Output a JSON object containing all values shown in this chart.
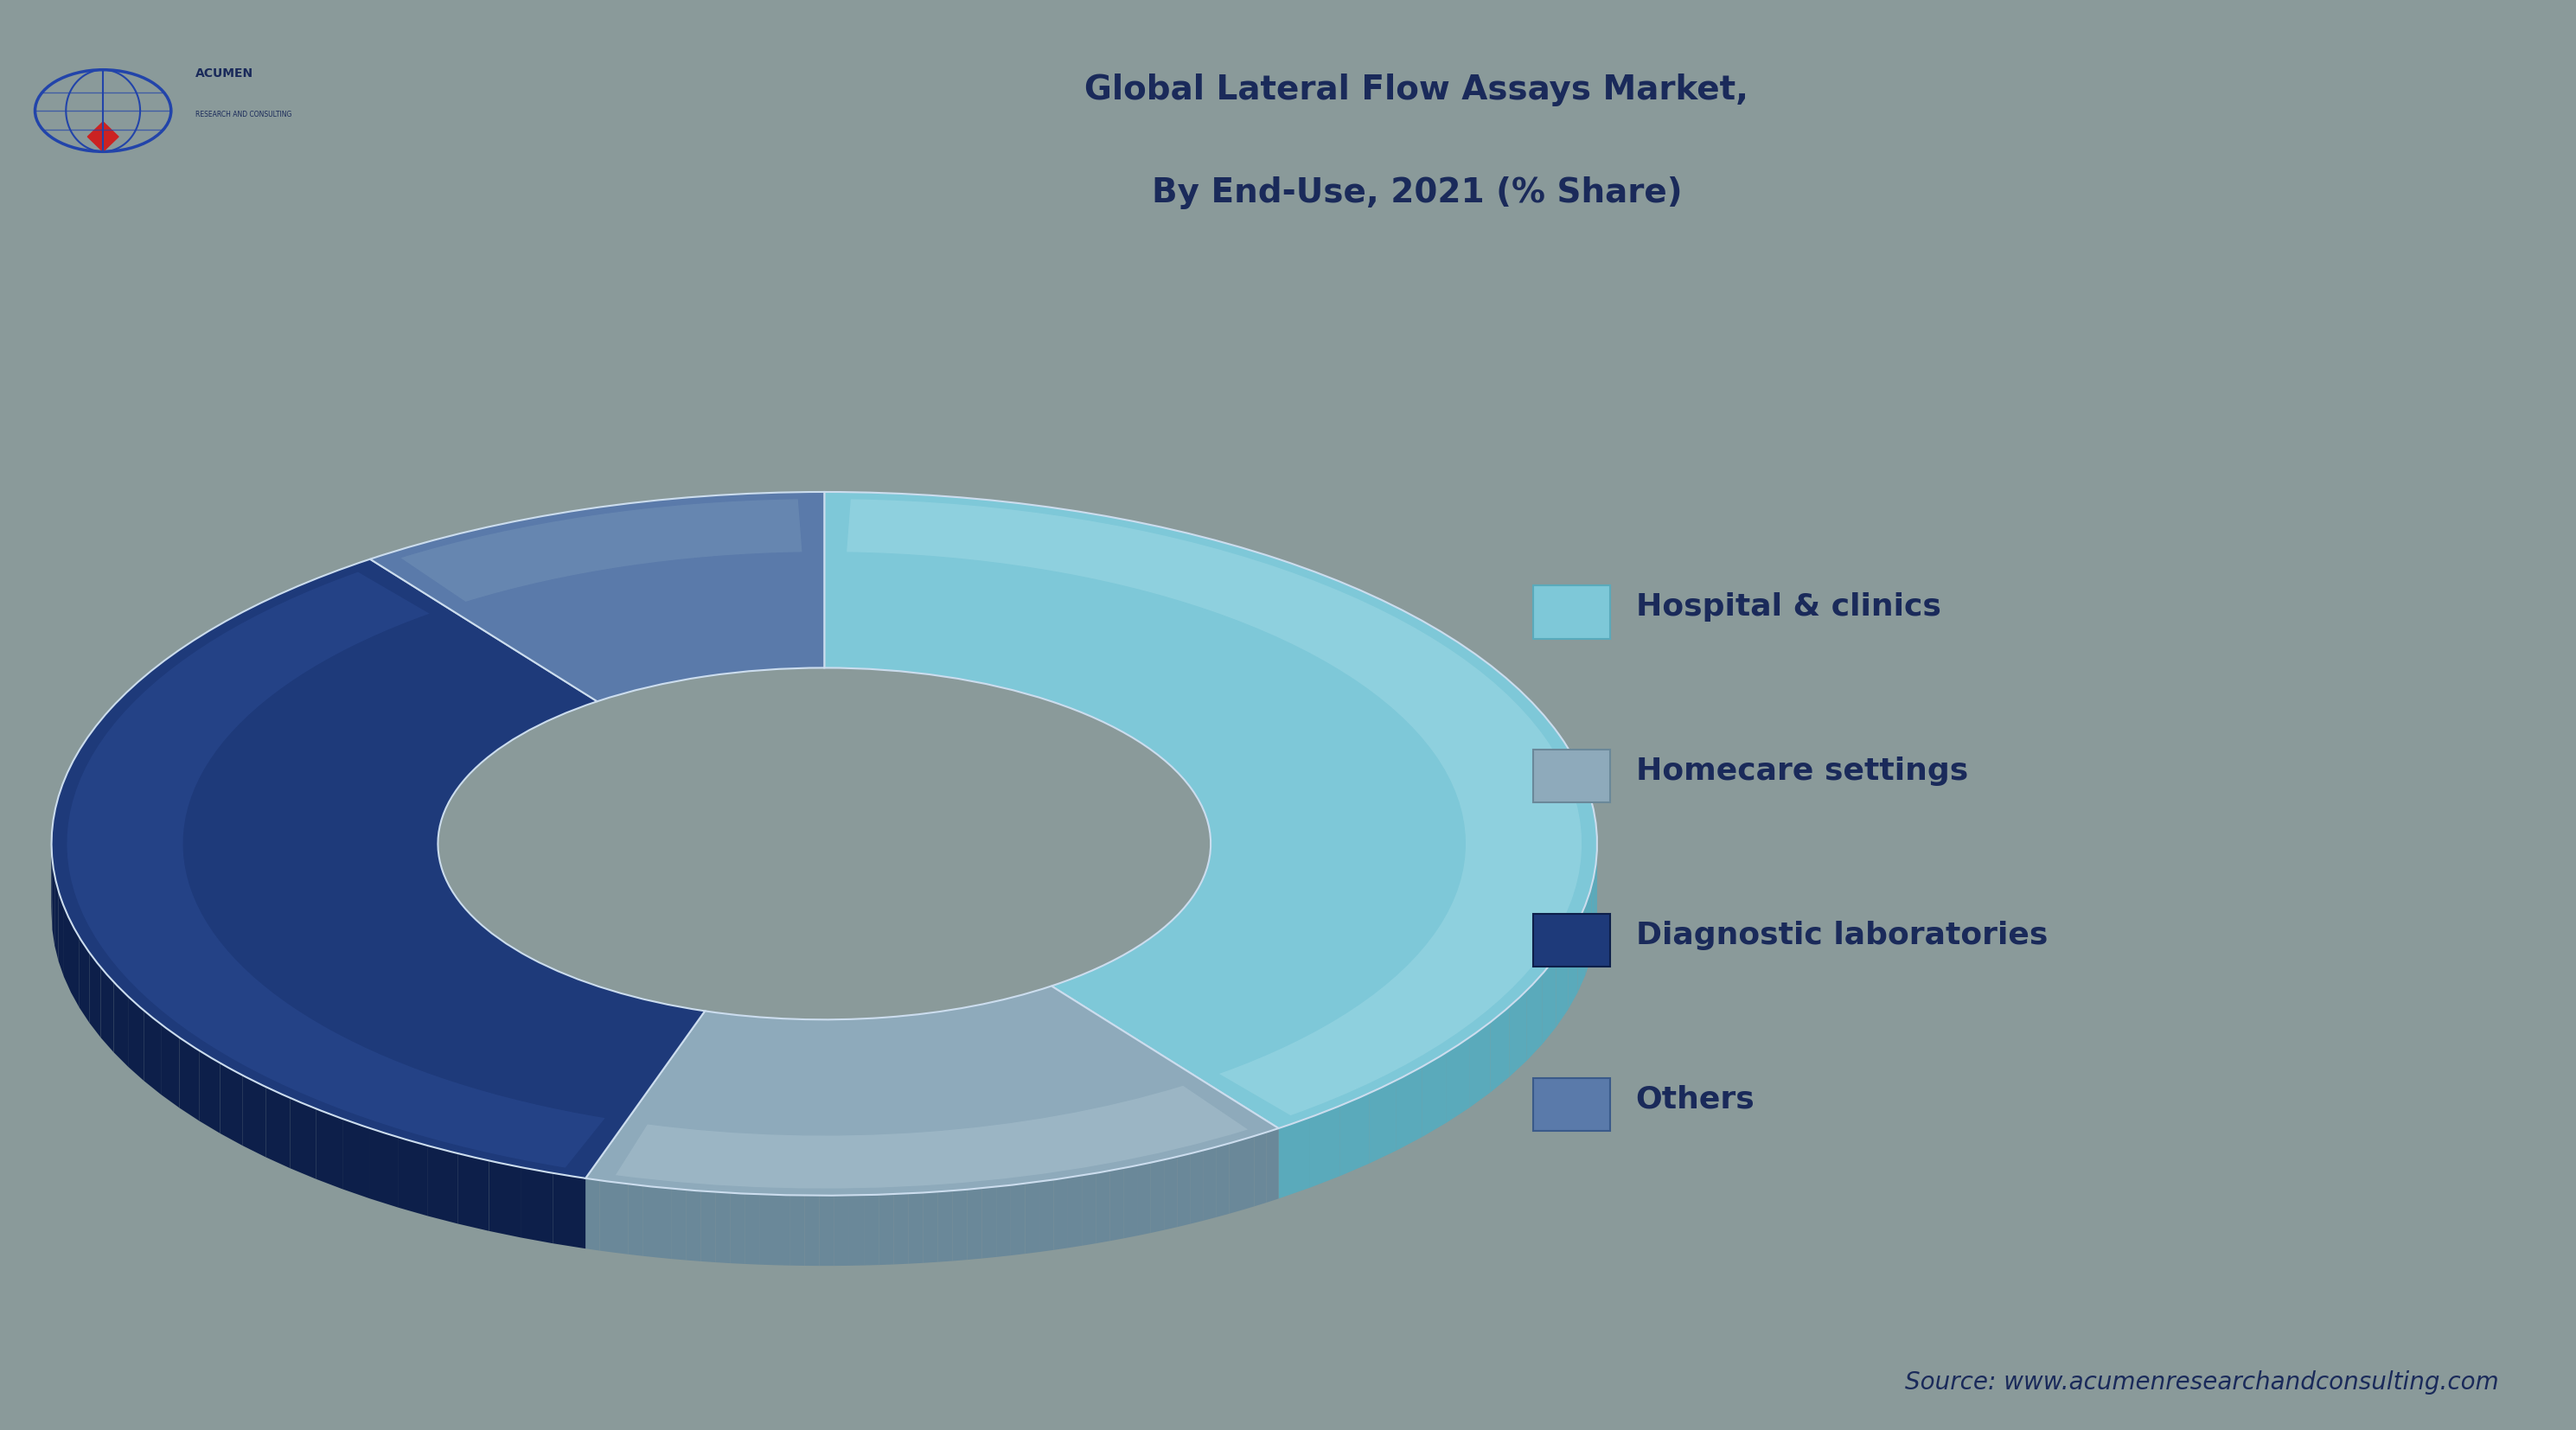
{
  "title_line1": "Global Lateral Flow Assays Market,",
  "title_line2": "By End-Use, 2021 (% Share)",
  "segments": [
    {
      "label": "Hospital & clinics",
      "value": 40,
      "color_main": "#7EC8D8",
      "color_dark": "#5AAABB",
      "color_light": "#A8DDE8"
    },
    {
      "label": "Homecare settings",
      "value": 15,
      "color_main": "#8EAABB",
      "color_dark": "#6A8899",
      "color_light": "#B0C8D4"
    },
    {
      "label": "Diagnostic laboratories",
      "value": 35,
      "color_main": "#1E3A7A",
      "color_dark": "#0D1F4A",
      "color_light": "#2E4F9A"
    },
    {
      "label": "Others",
      "value": 10,
      "color_main": "#5A7AAA",
      "color_dark": "#3A5A8A",
      "color_light": "#7A9ABB"
    }
  ],
  "background_color": "#8A9A9A",
  "header_bg_color": "#9AACAC",
  "title_color": "#1A2A5A",
  "legend_text_color": "#1A2A5A",
  "source_text": "Source: www.acumenresearchandconsulting.com",
  "source_color": "#1A2A5A",
  "separator_color": "#2A4A6A",
  "title_fontsize": 28,
  "legend_fontsize": 26,
  "source_fontsize": 20
}
